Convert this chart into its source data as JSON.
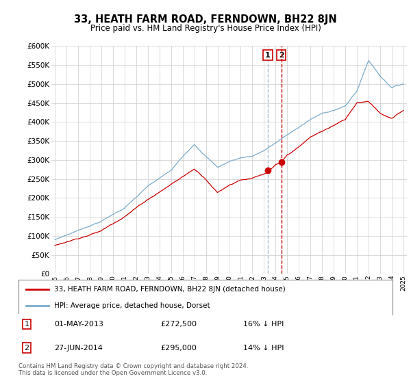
{
  "title": "33, HEATH FARM ROAD, FERNDOWN, BH22 8JN",
  "subtitle": "Price paid vs. HM Land Registry's House Price Index (HPI)",
  "legend_line1": "33, HEATH FARM ROAD, FERNDOWN, BH22 8JN (detached house)",
  "legend_line2": "HPI: Average price, detached house, Dorset",
  "sale1_label": "1",
  "sale1_date": "01-MAY-2013",
  "sale1_price": "£272,500",
  "sale1_hpi": "16% ↓ HPI",
  "sale2_label": "2",
  "sale2_date": "27-JUN-2014",
  "sale2_price": "£295,000",
  "sale2_hpi": "14% ↓ HPI",
  "footer": "Contains HM Land Registry data © Crown copyright and database right 2024.\nThis data is licensed under the Open Government Licence v3.0.",
  "sale1_year": 2013.33,
  "sale1_value": 272500,
  "sale2_year": 2014.5,
  "sale2_value": 295000,
  "red_color": "#cc0000",
  "blue_color": "#7aabcc",
  "vline1_color": "#aabbcc",
  "vline2_color": "#cc0000",
  "ylim_min": 0,
  "ylim_max": 600000,
  "ytick_step": 50000,
  "background_color": "#ffffff",
  "grid_color": "#cccccc"
}
